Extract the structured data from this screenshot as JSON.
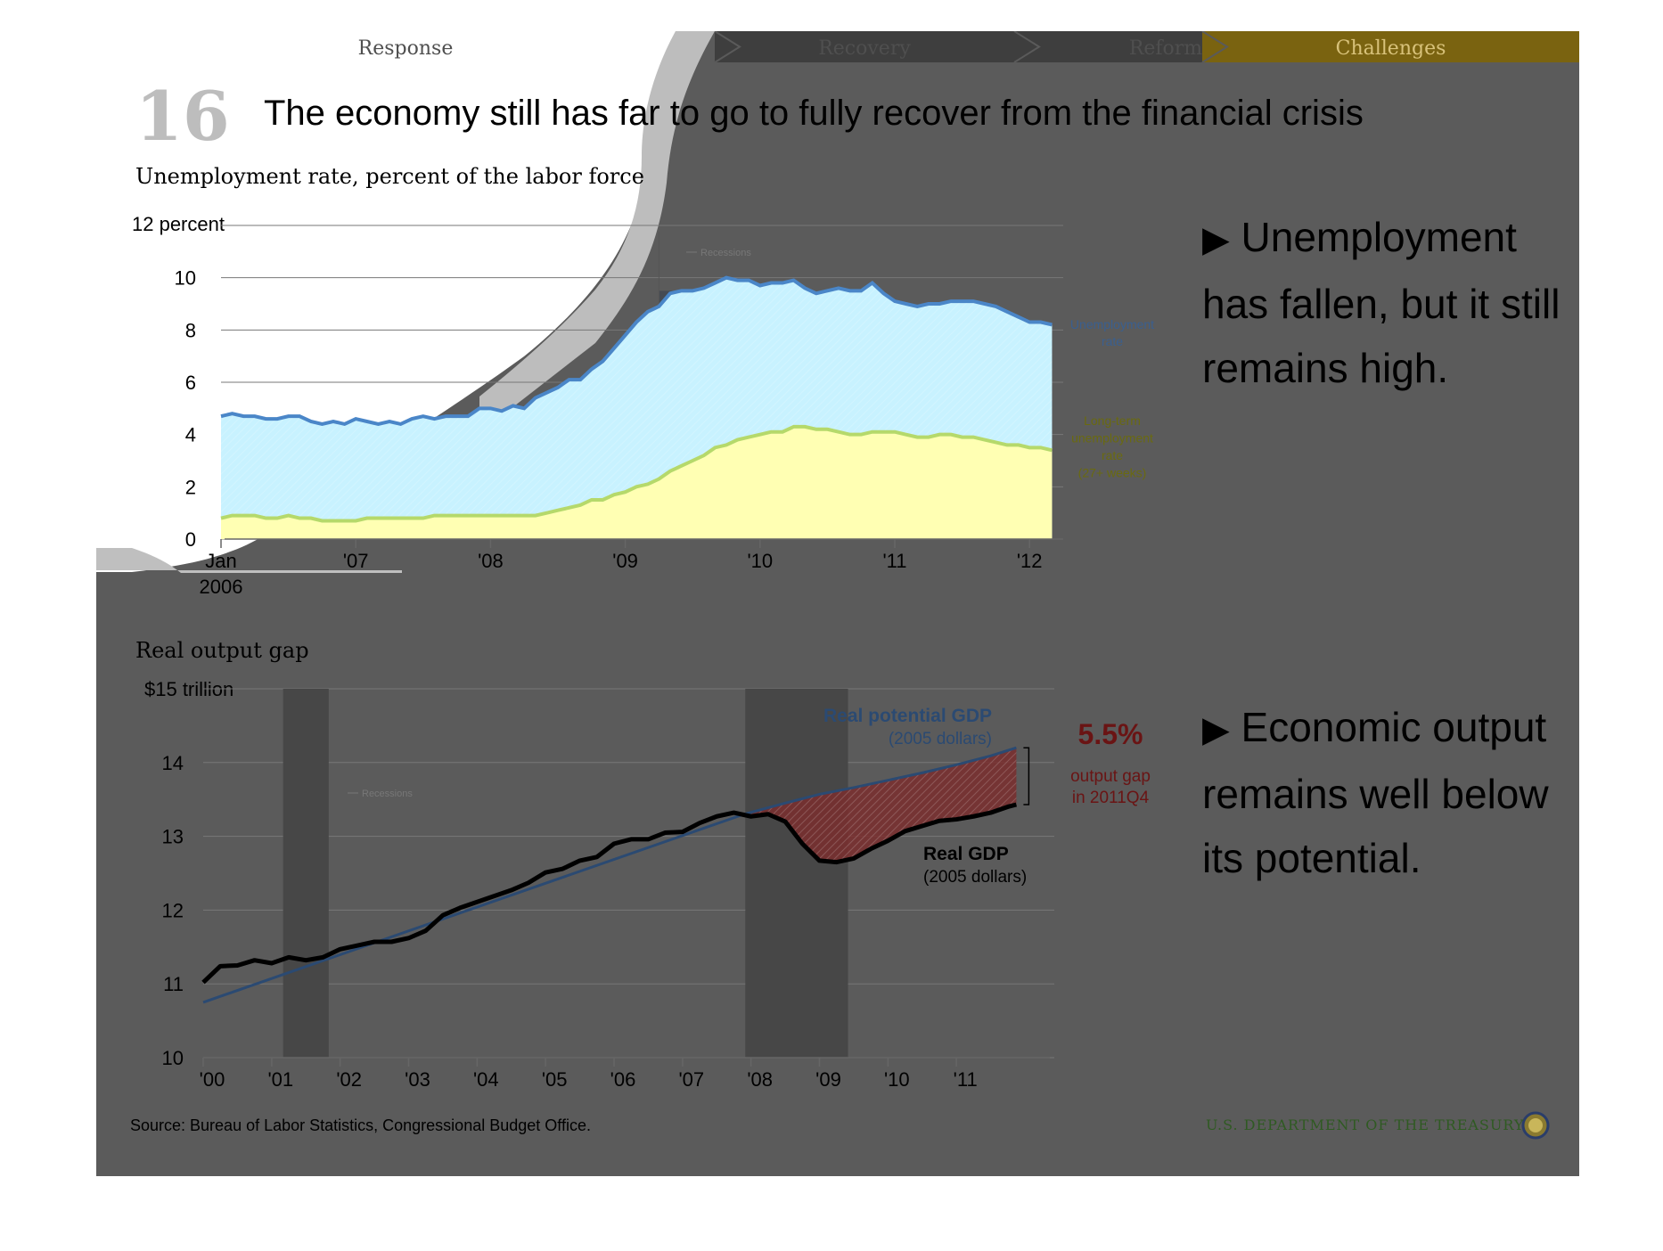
{
  "nav": {
    "tabs": [
      {
        "label": "Response",
        "active": false
      },
      {
        "label": "Recovery",
        "active": false
      },
      {
        "label": "Reform",
        "active": false
      },
      {
        "label": "Challenges",
        "active": true
      }
    ]
  },
  "slide": {
    "number": "16",
    "title": "The economy still has far to go to fully recover from the financial crisis"
  },
  "bullets": [
    {
      "marker": "▶",
      "text": "Unemployment has fallen, but it still remains high."
    },
    {
      "marker": "▶",
      "text": "Economic output remains well below its potential."
    }
  ],
  "footer": {
    "source": "Source: Bureau of Labor Statistics, Congressional Budget Office.",
    "agency": "U.S. DEPARTMENT OF THE TREASURY"
  },
  "colors": {
    "overlay": "#5b5b5b",
    "unemployment_line": "#4a86c8",
    "unemployment_fill": "#c8f2ff",
    "longterm_line": "#b5d96b",
    "longterm_fill": "#ffffb3",
    "gdp_line": "#000000",
    "potential_line": "#2b4a72",
    "gap_fill": "#7a2e2e",
    "gap_text": "#6a1414",
    "challenges_tab": "#7a6310"
  },
  "chart_data": [
    {
      "type": "area",
      "title": "Unemployment rate, percent of the labor force",
      "ylabel_top": "12 percent",
      "yticks": [
        "10",
        "8",
        "6",
        "4",
        "2",
        "0"
      ],
      "ytick_values": [
        10,
        8,
        6,
        4,
        2,
        0
      ],
      "ylim": [
        0,
        12
      ],
      "xlim": [
        2006.0,
        2012.25
      ],
      "xticks": [
        {
          "label": "Jan",
          "sublabel": "2006",
          "x": 2006.0
        },
        {
          "label": "'07",
          "sublabel": "",
          "x": 2007.0
        },
        {
          "label": "'08",
          "sublabel": "",
          "x": 2008.0
        },
        {
          "label": "'09",
          "sublabel": "",
          "x": 2009.0
        },
        {
          "label": "'10",
          "sublabel": "",
          "x": 2010.0
        },
        {
          "label": "'11",
          "sublabel": "",
          "x": 2011.0
        },
        {
          "label": "'12",
          "sublabel": "",
          "x": 2012.0
        }
      ],
      "recession_label": "Recessions",
      "recessions": [
        [
          2007.917,
          2009.5
        ]
      ],
      "grid": true,
      "series": [
        {
          "name": "Unemployment rate",
          "x": [
            2006.0,
            2006.083,
            2006.167,
            2006.25,
            2006.333,
            2006.417,
            2006.5,
            2006.583,
            2006.667,
            2006.75,
            2006.833,
            2006.917,
            2007.0,
            2007.083,
            2007.167,
            2007.25,
            2007.333,
            2007.417,
            2007.5,
            2007.583,
            2007.667,
            2007.75,
            2007.833,
            2007.917,
            2008.0,
            2008.083,
            2008.167,
            2008.25,
            2008.333,
            2008.417,
            2008.5,
            2008.583,
            2008.667,
            2008.75,
            2008.833,
            2008.917,
            2009.0,
            2009.083,
            2009.167,
            2009.25,
            2009.333,
            2009.417,
            2009.5,
            2009.583,
            2009.667,
            2009.75,
            2009.833,
            2009.917,
            2010.0,
            2010.083,
            2010.167,
            2010.25,
            2010.333,
            2010.417,
            2010.5,
            2010.583,
            2010.667,
            2010.75,
            2010.833,
            2010.917,
            2011.0,
            2011.083,
            2011.167,
            2011.25,
            2011.333,
            2011.417,
            2011.5,
            2011.583,
            2011.667,
            2011.75,
            2011.833,
            2011.917,
            2012.0,
            2012.083,
            2012.167
          ],
          "values": [
            4.7,
            4.8,
            4.7,
            4.7,
            4.6,
            4.6,
            4.7,
            4.7,
            4.5,
            4.4,
            4.5,
            4.4,
            4.6,
            4.5,
            4.4,
            4.5,
            4.4,
            4.6,
            4.7,
            4.6,
            4.7,
            4.7,
            4.7,
            5.0,
            5.0,
            4.9,
            5.1,
            5.0,
            5.4,
            5.6,
            5.8,
            6.1,
            6.1,
            6.5,
            6.8,
            7.3,
            7.8,
            8.3,
            8.7,
            8.9,
            9.4,
            9.5,
            9.5,
            9.6,
            9.8,
            10.0,
            9.9,
            9.9,
            9.7,
            9.8,
            9.8,
            9.9,
            9.6,
            9.4,
            9.5,
            9.6,
            9.5,
            9.5,
            9.8,
            9.4,
            9.1,
            9.0,
            8.9,
            9.0,
            9.0,
            9.1,
            9.1,
            9.1,
            9.0,
            8.9,
            8.7,
            8.5,
            8.3,
            8.3,
            8.2
          ],
          "label": "Unemployment rate"
        },
        {
          "name": "Long-term unemployment rate (27+ weeks)",
          "x": [
            2006.0,
            2006.083,
            2006.167,
            2006.25,
            2006.333,
            2006.417,
            2006.5,
            2006.583,
            2006.667,
            2006.75,
            2006.833,
            2006.917,
            2007.0,
            2007.083,
            2007.167,
            2007.25,
            2007.333,
            2007.417,
            2007.5,
            2007.583,
            2007.667,
            2007.75,
            2007.833,
            2007.917,
            2008.0,
            2008.083,
            2008.167,
            2008.25,
            2008.333,
            2008.417,
            2008.5,
            2008.583,
            2008.667,
            2008.75,
            2008.833,
            2008.917,
            2009.0,
            2009.083,
            2009.167,
            2009.25,
            2009.333,
            2009.417,
            2009.5,
            2009.583,
            2009.667,
            2009.75,
            2009.833,
            2009.917,
            2010.0,
            2010.083,
            2010.167,
            2010.25,
            2010.333,
            2010.417,
            2010.5,
            2010.583,
            2010.667,
            2010.75,
            2010.833,
            2010.917,
            2011.0,
            2011.083,
            2011.167,
            2011.25,
            2011.333,
            2011.417,
            2011.5,
            2011.583,
            2011.667,
            2011.75,
            2011.833,
            2011.917,
            2012.0,
            2012.083,
            2012.167
          ],
          "values": [
            0.8,
            0.9,
            0.9,
            0.9,
            0.8,
            0.8,
            0.9,
            0.8,
            0.8,
            0.7,
            0.7,
            0.7,
            0.7,
            0.8,
            0.8,
            0.8,
            0.8,
            0.8,
            0.8,
            0.9,
            0.9,
            0.9,
            0.9,
            0.9,
            0.9,
            0.9,
            0.9,
            0.9,
            0.9,
            1.0,
            1.1,
            1.2,
            1.3,
            1.5,
            1.5,
            1.7,
            1.8,
            2.0,
            2.1,
            2.3,
            2.6,
            2.8,
            3.0,
            3.2,
            3.5,
            3.6,
            3.8,
            3.9,
            4.0,
            4.1,
            4.1,
            4.3,
            4.3,
            4.2,
            4.2,
            4.1,
            4.0,
            4.0,
            4.1,
            4.1,
            4.1,
            4.0,
            3.9,
            3.9,
            4.0,
            4.0,
            3.9,
            3.9,
            3.8,
            3.7,
            3.6,
            3.6,
            3.5,
            3.5,
            3.4
          ],
          "label_lines": [
            "Long-term",
            "unemployment",
            "rate",
            "(27+ weeks)"
          ]
        }
      ]
    },
    {
      "type": "line",
      "title": "Real output gap",
      "ylabel_top": "$15 trillion",
      "yticks": [
        "14",
        "13",
        "12",
        "11",
        "10"
      ],
      "ytick_values": [
        14,
        13,
        12,
        11,
        10
      ],
      "ylim": [
        10,
        15
      ],
      "xlim": [
        2000.0,
        2012.0
      ],
      "xticks": [
        "'00",
        "'01",
        "'02",
        "'03",
        "'04",
        "'05",
        "'06",
        "'07",
        "'08",
        "'09",
        "'10",
        "'11"
      ],
      "xtick_values": [
        2000,
        2001,
        2002,
        2003,
        2004,
        2005,
        2006,
        2007,
        2008,
        2009,
        2010,
        2011
      ],
      "recession_label": "Recessions",
      "recessions": [
        [
          2001.167,
          2001.833
        ],
        [
          2007.917,
          2009.417
        ]
      ],
      "grid": true,
      "series": [
        {
          "name": "Real potential GDP",
          "sub": "(2005 dollars)",
          "x": [
            2000.0,
            2007.9,
            2008.5,
            2009.0,
            2009.5,
            2010.0,
            2010.5,
            2011.0,
            2011.5,
            2011.875
          ],
          "values": [
            10.75,
            13.3,
            13.45,
            13.57,
            13.66,
            13.76,
            13.86,
            13.97,
            14.09,
            14.2
          ]
        },
        {
          "name": "Real GDP",
          "sub": "(2005 dollars)",
          "x": [
            2000.0,
            2000.25,
            2000.5,
            2000.75,
            2001.0,
            2001.25,
            2001.5,
            2001.75,
            2002.0,
            2002.25,
            2002.5,
            2002.75,
            2003.0,
            2003.25,
            2003.5,
            2003.75,
            2004.0,
            2004.25,
            2004.5,
            2004.75,
            2005.0,
            2005.25,
            2005.5,
            2005.75,
            2006.0,
            2006.25,
            2006.5,
            2006.75,
            2007.0,
            2007.25,
            2007.5,
            2007.75,
            2008.0,
            2008.25,
            2008.5,
            2008.75,
            2009.0,
            2009.25,
            2009.5,
            2009.75,
            2010.0,
            2010.25,
            2010.5,
            2010.75,
            2011.0,
            2011.25,
            2011.5,
            2011.75,
            2011.875
          ],
          "values": [
            11.02,
            11.24,
            11.25,
            11.32,
            11.28,
            11.36,
            11.32,
            11.36,
            11.47,
            11.52,
            11.57,
            11.57,
            11.62,
            11.72,
            11.93,
            12.03,
            12.11,
            12.19,
            12.27,
            12.37,
            12.51,
            12.56,
            12.67,
            12.72,
            12.9,
            12.96,
            12.96,
            13.05,
            13.06,
            13.18,
            13.27,
            13.32,
            13.27,
            13.3,
            13.2,
            12.9,
            12.67,
            12.65,
            12.7,
            12.83,
            12.94,
            13.07,
            13.14,
            13.21,
            13.23,
            13.27,
            13.32,
            13.4,
            13.43
          ]
        }
      ],
      "annotation": {
        "value": "5.5%",
        "line1": "output gap",
        "line2": "in 2011Q4"
      }
    }
  ]
}
